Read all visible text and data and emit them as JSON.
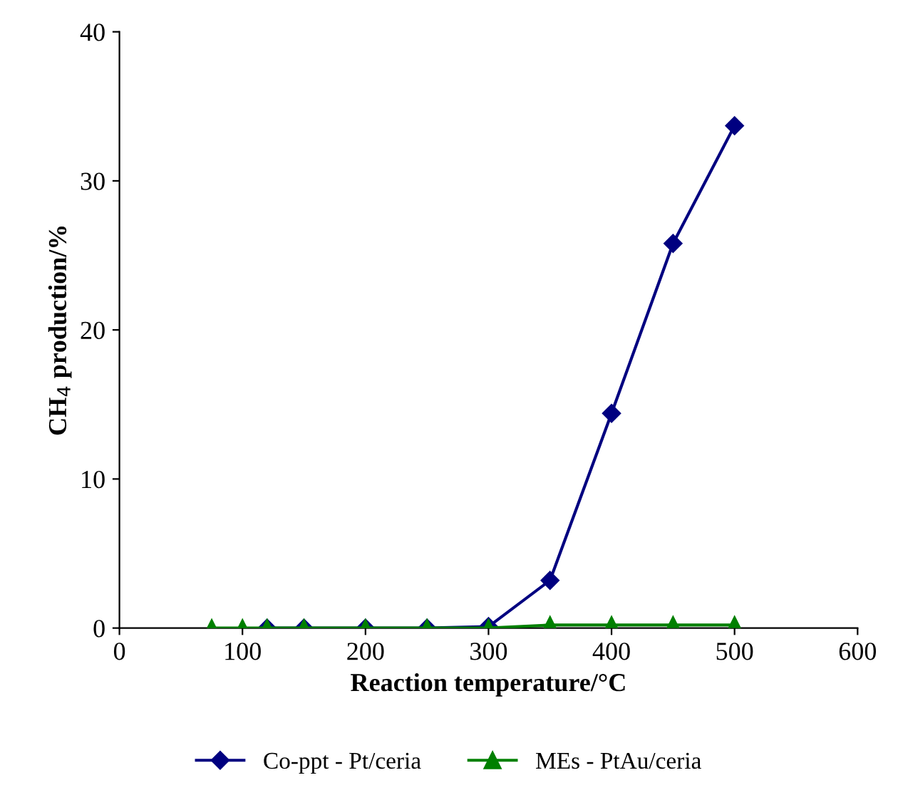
{
  "chart_data": {
    "type": "line",
    "xlabel": "Reaction temperature/°C",
    "ylabel": "CH$_{4}$ production/%",
    "xlim": [
      0,
      600
    ],
    "xticks": [
      0,
      100,
      200,
      300,
      400,
      500,
      600
    ],
    "ylim": [
      0,
      40
    ],
    "yticks": [
      0,
      10,
      20,
      30,
      40
    ],
    "grid": false,
    "legend": "bottom",
    "line_style": "solid",
    "series": [
      {
        "name": "Co-ppt - Pt/ceria",
        "color": "#000080",
        "marker": "diamond",
        "x": [
          120,
          150,
          200,
          250,
          300,
          350,
          400,
          450,
          500
        ],
        "values": [
          0,
          0,
          0,
          0,
          0.1,
          3.2,
          14.4,
          25.8,
          33.7
        ]
      },
      {
        "name": "MEs - PtAu/ceria",
        "color": "#008000",
        "marker": "triangle",
        "x": [
          75,
          100,
          120,
          150,
          200,
          250,
          300,
          350,
          400,
          450,
          500
        ],
        "values": [
          0,
          0,
          0,
          0,
          0,
          0,
          0,
          0.2,
          0.2,
          0.2,
          0.2
        ]
      }
    ]
  }
}
